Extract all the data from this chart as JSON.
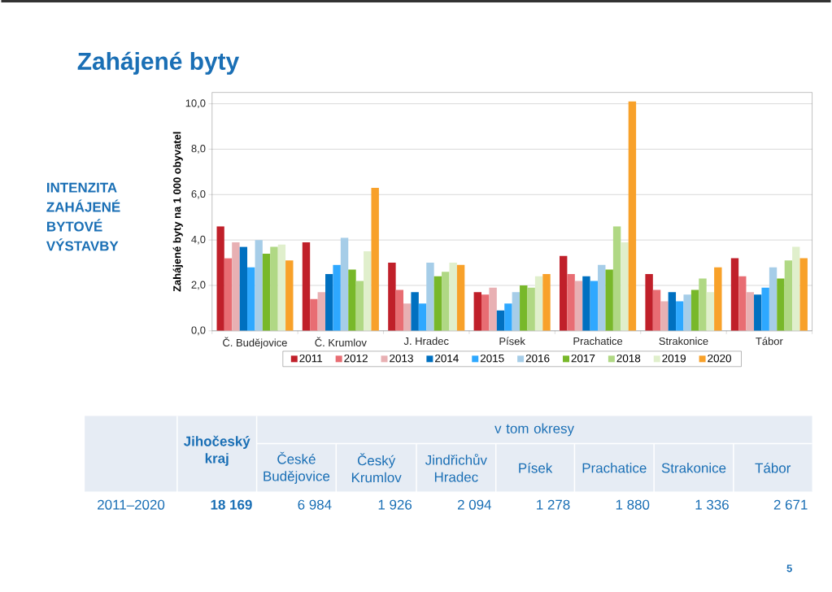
{
  "chart_data": {
    "type": "bar",
    "title": "Zahájené byty",
    "subtitle": "INTENZITA ZAHÁJENÉ BYTOVÉ VÝSTAVBY",
    "ylabel": "Zahájené byty na 1 000 obyvatel",
    "categories": [
      "Č. Budějovice",
      "Č. Krumlov",
      "J. Hradec",
      "Písek",
      "Prachatice",
      "Strakonice",
      "Tábor"
    ],
    "series": [
      {
        "name": "2011",
        "color": "#c0202a",
        "values": [
          4.6,
          3.9,
          3.0,
          1.7,
          3.3,
          2.5,
          3.2
        ]
      },
      {
        "name": "2012",
        "color": "#e86d73",
        "values": [
          3.2,
          1.4,
          1.8,
          1.6,
          2.5,
          1.8,
          2.4
        ]
      },
      {
        "name": "2013",
        "color": "#e8b0b3",
        "values": [
          3.9,
          1.7,
          1.2,
          1.9,
          2.2,
          1.3,
          1.7
        ]
      },
      {
        "name": "2014",
        "color": "#0070c0",
        "values": [
          3.7,
          2.5,
          1.7,
          0.9,
          2.4,
          1.7,
          1.6
        ]
      },
      {
        "name": "2015",
        "color": "#2ea8ff",
        "values": [
          2.8,
          2.9,
          1.2,
          1.2,
          2.2,
          1.3,
          1.9
        ]
      },
      {
        "name": "2016",
        "color": "#a6cde8",
        "values": [
          4.0,
          4.1,
          3.0,
          1.7,
          2.9,
          1.6,
          2.8
        ]
      },
      {
        "name": "2017",
        "color": "#78b82a",
        "values": [
          3.4,
          2.7,
          2.4,
          2.0,
          2.7,
          1.8,
          2.3
        ]
      },
      {
        "name": "2018",
        "color": "#b0d884",
        "values": [
          3.7,
          2.2,
          2.6,
          1.9,
          4.6,
          2.3,
          3.1
        ]
      },
      {
        "name": "2019",
        "color": "#e0efcc",
        "values": [
          3.8,
          3.5,
          3.0,
          2.4,
          3.9,
          1.7,
          3.7
        ]
      },
      {
        "name": "2020",
        "color": "#f8a12a",
        "values": [
          3.1,
          6.3,
          2.9,
          2.5,
          10.1,
          2.8,
          3.2
        ]
      }
    ],
    "ylim": [
      0,
      10.5
    ],
    "yticks": [
      {
        "value": 0,
        "label": "0,0"
      },
      {
        "value": 2,
        "label": "2,0"
      },
      {
        "value": 4,
        "label": "4,0"
      },
      {
        "value": 6,
        "label": "6,0"
      },
      {
        "value": 8,
        "label": "8,0"
      },
      {
        "value": 10,
        "label": "10,0"
      }
    ],
    "grid": "y",
    "legend": "bottom",
    "annotations": [
      "v tom okresy",
      "Jihočeský kraj",
      "České Budějovice",
      "Český Krumlov",
      "Jindřichův Hradec",
      "Písek",
      "Prachatice",
      "Strakonice",
      "Tábor",
      "2011–2020",
      "18 169",
      "6 984",
      "1 926",
      "2 094",
      "1 278",
      "1 880",
      "1 336",
      "2 671",
      "5"
    ]
  }
}
